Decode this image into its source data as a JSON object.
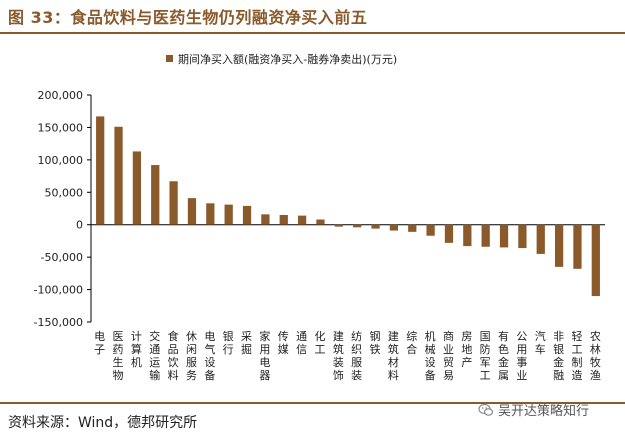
{
  "figure": {
    "title": "图 33：食品饮料与医药生物仍列融资净买入前五",
    "source": "资料来源：Wind，德邦研究所",
    "watermark": "吴开达策略知行"
  },
  "colors": {
    "accent": "#8b5a2b",
    "bar": "#8b5a2b",
    "axis": "#000000"
  },
  "chart_data": {
    "type": "bar",
    "title": "",
    "legend": "期间净买入额(融资净买入-融券净卖出)(万元)",
    "legend_position": "top-center",
    "xlabel": "",
    "ylabel": "",
    "ylim": [
      -150000,
      200000
    ],
    "yticks": [
      -150000,
      -100000,
      -50000,
      0,
      50000,
      100000,
      150000,
      200000
    ],
    "ytick_labels": [
      "-150,000",
      "-100,000",
      "-50,000",
      "0",
      "50,000",
      "100,000",
      "150,000",
      "200,000"
    ],
    "grid": false,
    "categories": [
      "电子",
      "医药生物",
      "计算机",
      "交通运输",
      "食品饮料",
      "休闲服务",
      "电气设备",
      "银行",
      "采掘",
      "家用电器",
      "传媒",
      "通信",
      "化工",
      "建筑装饰",
      "纺织服装",
      "钢铁",
      "建筑材料",
      "综合",
      "机械设备",
      "商业贸易",
      "房地产",
      "国防军工",
      "有色金属",
      "公用事业",
      "汽车",
      "非银金融",
      "轻工制造",
      "农林牧渔"
    ],
    "series": [
      {
        "name": "期间净买入额(融资净买入-融券净卖出)(万元)",
        "values": [
          167000,
          151000,
          113000,
          92000,
          67000,
          41000,
          33000,
          31000,
          29000,
          16000,
          15000,
          14000,
          8000,
          -3000,
          -4000,
          -6000,
          -9000,
          -11000,
          -17000,
          -28000,
          -33000,
          -34000,
          -35000,
          -36000,
          -45000,
          -65000,
          -68000,
          -110000
        ]
      }
    ]
  }
}
